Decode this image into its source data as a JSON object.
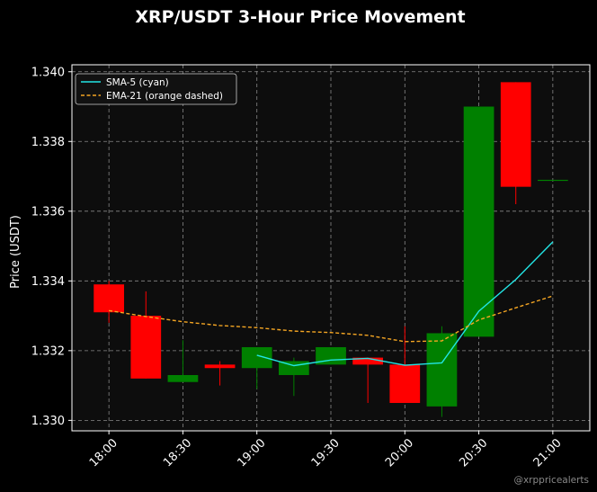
{
  "chart_data": {
    "type": "candlestick",
    "title": "XRP/USDT 3-Hour Price Movement",
    "ylabel": "Price (USDT)",
    "xlabel": "",
    "ylim": [
      1.3297,
      1.3402
    ],
    "xlim": [
      "17:45",
      "21:15"
    ],
    "grid": true,
    "legend_position": "top-left",
    "x_ticks": [
      "18:00",
      "18:30",
      "19:00",
      "19:30",
      "20:00",
      "20:30",
      "21:00"
    ],
    "y_ticks": [
      "1.330",
      "1.332",
      "1.334",
      "1.336",
      "1.338",
      "1.340"
    ],
    "candles": [
      {
        "time": "18:00",
        "open": 1.3339,
        "high": 1.334,
        "low": 1.3328,
        "close": 1.3331
      },
      {
        "time": "18:15",
        "open": 1.333,
        "high": 1.3337,
        "low": 1.3312,
        "close": 1.3312
      },
      {
        "time": "18:30",
        "open": 1.3311,
        "high": 1.3323,
        "low": 1.3311,
        "close": 1.3313
      },
      {
        "time": "18:45",
        "open": 1.3316,
        "high": 1.3317,
        "low": 1.331,
        "close": 1.3315
      },
      {
        "time": "19:00",
        "open": 1.3315,
        "high": 1.3321,
        "low": 1.3309,
        "close": 1.3321
      },
      {
        "time": "19:15",
        "open": 1.3313,
        "high": 1.3318,
        "low": 1.3307,
        "close": 1.3317
      },
      {
        "time": "19:30",
        "open": 1.3316,
        "high": 1.3321,
        "low": 1.3316,
        "close": 1.3321
      },
      {
        "time": "19:45",
        "open": 1.3318,
        "high": 1.3318,
        "low": 1.3305,
        "close": 1.3316
      },
      {
        "time": "20:00",
        "open": 1.3316,
        "high": 1.3327,
        "low": 1.3305,
        "close": 1.3305
      },
      {
        "time": "20:15",
        "open": 1.3304,
        "high": 1.3327,
        "low": 1.3301,
        "close": 1.3325
      },
      {
        "time": "20:30",
        "open": 1.3324,
        "high": 1.339,
        "low": 1.3324,
        "close": 1.339
      },
      {
        "time": "20:45",
        "open": 1.3397,
        "high": 1.3397,
        "low": 1.3362,
        "close": 1.3367
      },
      {
        "time": "21:00",
        "open": 1.3369,
        "high": 1.3369,
        "low": 1.3369,
        "close": 1.3369
      }
    ],
    "series": [
      {
        "name": "SMA-5 (cyan)",
        "color": "#22e5e5",
        "style": "solid",
        "x": [
          "19:00",
          "19:15",
          "19:30",
          "19:45",
          "20:00",
          "20:15",
          "20:30",
          "20:45",
          "21:00"
        ],
        "values": [
          1.33187,
          1.33157,
          1.33173,
          1.33178,
          1.33158,
          1.33165,
          1.33313,
          1.33404,
          1.33512
        ]
      },
      {
        "name": "EMA-21 (orange dashed)",
        "color": "#f5a623",
        "style": "dashed",
        "x": [
          "18:00",
          "18:15",
          "18:30",
          "18:45",
          "19:00",
          "19:15",
          "19:30",
          "19:45",
          "20:00",
          "20:15",
          "20:30",
          "20:45",
          "21:00"
        ],
        "values": [
          1.33315,
          1.33298,
          1.33283,
          1.33272,
          1.33266,
          1.33256,
          1.33252,
          1.33244,
          1.33226,
          1.33228,
          1.33288,
          1.33323,
          1.33357
        ]
      }
    ],
    "colors": {
      "up": "#008000",
      "down": "#ff0000",
      "plot_bg": "#0d0d0d",
      "figure_bg": "#000000",
      "grid": "#888888"
    },
    "watermark": "@xrppricealerts"
  }
}
